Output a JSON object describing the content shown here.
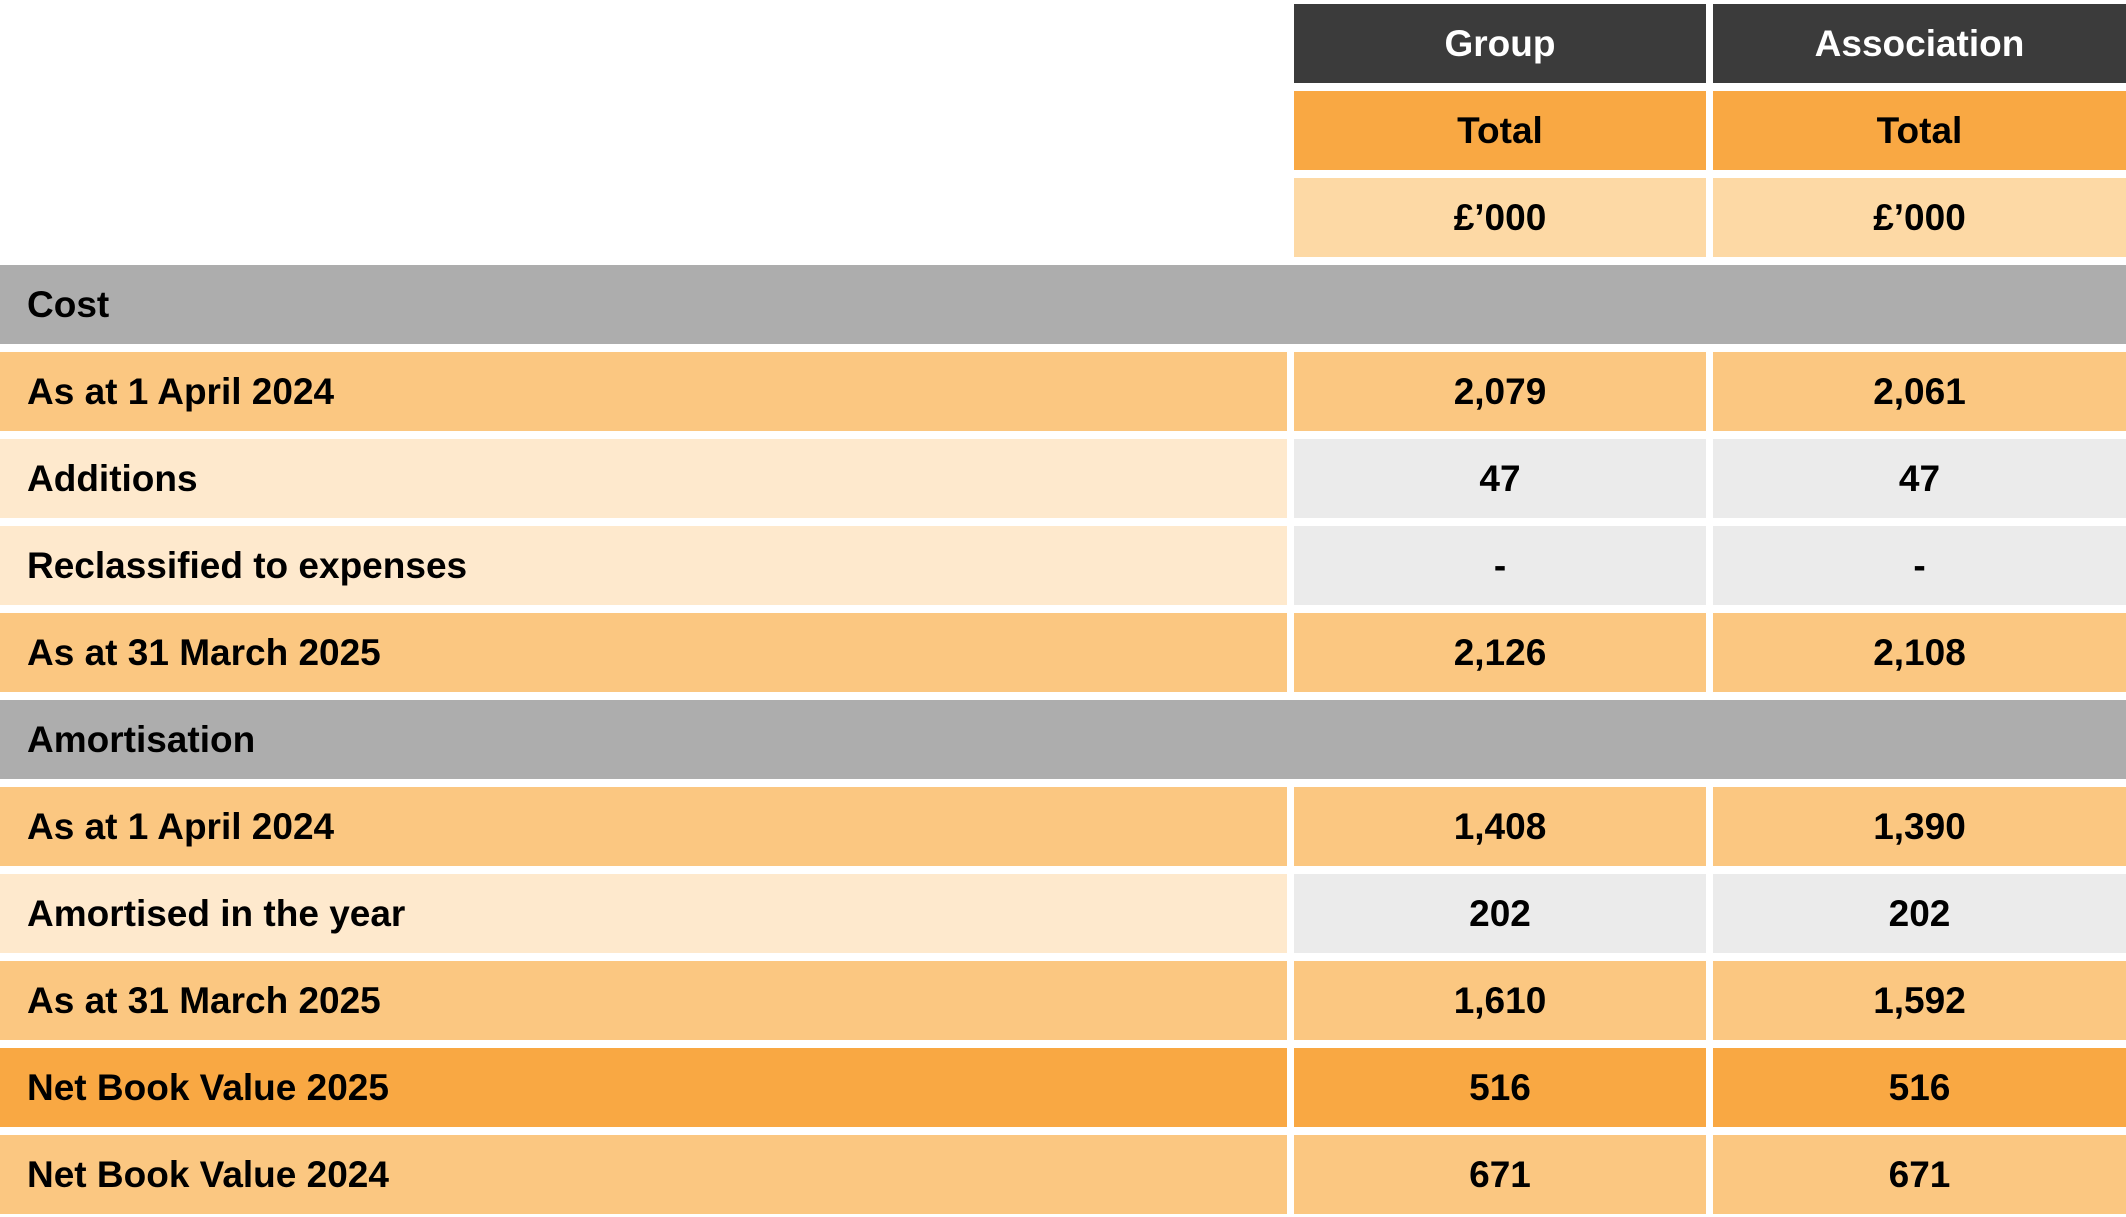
{
  "table": {
    "header": {
      "group": "Group",
      "association": "Association"
    },
    "subheader": {
      "group": "Total",
      "association": "Total"
    },
    "units": {
      "group": "£’000",
      "association": "£’000"
    },
    "sections": {
      "cost": "Cost",
      "amortisation": "Amortisation"
    },
    "rows": [
      {
        "label": "As at 1 April 2024",
        "group": "2,079",
        "association": "2,061"
      },
      {
        "label": "Additions",
        "group": "47",
        "association": "47"
      },
      {
        "label": "Reclassified to expenses",
        "group": "-",
        "association": "-"
      },
      {
        "label": "As at 31 March 2025",
        "group": "2,126",
        "association": "2,108"
      },
      {
        "label": "As at 1 April 2024",
        "group": "1,408",
        "association": "1,390"
      },
      {
        "label": "Amortised in the year",
        "group": "202",
        "association": "202"
      },
      {
        "label": "As at 31 March 2025",
        "group": "1,610",
        "association": "1,592"
      },
      {
        "label": "Net Book Value 2025",
        "group": "516",
        "association": "516"
      },
      {
        "label": "Net Book Value 2024",
        "group": "671",
        "association": "671"
      }
    ]
  },
  "colors": {
    "header_dark": "#3B3B3B",
    "orange_strong": "#F9A843",
    "orange_mid": "#FBC781",
    "orange_pale": "#FDD9A5",
    "orange_palest": "#FEE9CD",
    "section_gray": "#ADADAD",
    "value_gray": "#EBEBEB",
    "text_dark": "#000000",
    "text_light": "#FFFFFF",
    "background": "#FFFFFF"
  }
}
